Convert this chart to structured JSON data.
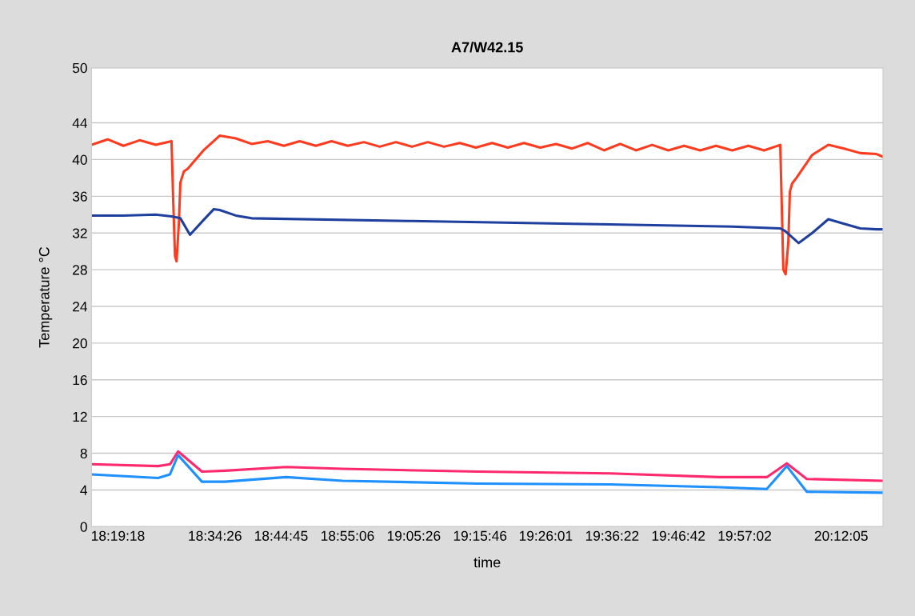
{
  "chart_data": {
    "type": "line",
    "title": "A7/W42.15",
    "xlabel": "time",
    "ylabel": "Temperature °C",
    "xlim": [
      18.253,
      20.31
    ],
    "xticks": [
      {
        "value": 18.3217,
        "label": "18:19:18"
      },
      {
        "value": 18.5739,
        "label": "18:34:26"
      },
      {
        "value": 18.7458,
        "label": "18:44:45"
      },
      {
        "value": 18.9183,
        "label": "18:55:06"
      },
      {
        "value": 19.0906,
        "label": "19:05:26"
      },
      {
        "value": 19.2628,
        "label": "19:15:46"
      },
      {
        "value": 19.4336,
        "label": "19:26:01"
      },
      {
        "value": 19.6061,
        "label": "19:36:22"
      },
      {
        "value": 19.7783,
        "label": "19:46:42"
      },
      {
        "value": 19.9506,
        "label": "19:57:02"
      },
      {
        "value": 20.2014,
        "label": "20:12:05"
      }
    ],
    "ylim": [
      0,
      50
    ],
    "yticks": [
      0,
      4,
      8,
      12,
      16,
      20,
      24,
      28,
      32,
      36,
      40,
      44,
      50
    ],
    "grid": "y",
    "marker": "none",
    "line_style": "solid",
    "series": [
      {
        "color": "#ff3b1f",
        "x": [
          18.253,
          18.295,
          18.336,
          18.378,
          18.42,
          18.461,
          18.465,
          18.47,
          18.474,
          18.48,
          18.484,
          18.493,
          18.503,
          18.544,
          18.586,
          18.628,
          18.669,
          18.711,
          18.753,
          18.794,
          18.836,
          18.877,
          18.919,
          18.961,
          19.002,
          19.044,
          19.086,
          19.127,
          19.169,
          19.21,
          19.252,
          19.294,
          19.335,
          19.377,
          19.419,
          19.46,
          19.502,
          19.543,
          19.585,
          19.627,
          19.668,
          19.71,
          19.752,
          19.793,
          19.835,
          19.876,
          19.918,
          19.96,
          20.001,
          20.043,
          20.047,
          20.051,
          20.057,
          20.064,
          20.068,
          20.074,
          20.085,
          20.126,
          20.168,
          20.209,
          20.251,
          20.293,
          20.31
        ],
        "values": [
          41.6,
          42.2,
          41.5,
          42.1,
          41.6,
          42.0,
          36,
          29.5,
          28.9,
          33,
          37.5,
          38.7,
          39.0,
          41.0,
          42.6,
          42.3,
          41.7,
          42.0,
          41.5,
          42.0,
          41.5,
          42.0,
          41.5,
          41.9,
          41.4,
          41.9,
          41.4,
          41.9,
          41.4,
          41.8,
          41.3,
          41.8,
          41.3,
          41.8,
          41.3,
          41.7,
          41.2,
          41.8,
          41.0,
          41.7,
          41.0,
          41.6,
          41.0,
          41.5,
          41.0,
          41.5,
          41.0,
          41.5,
          41.0,
          41.6,
          35,
          28,
          27.5,
          31,
          36.5,
          37.4,
          38.0,
          40.5,
          41.6,
          41.2,
          40.7,
          40.6,
          40.3
        ]
      },
      {
        "color": "#1f3f9f",
        "x": [
          18.253,
          18.336,
          18.42,
          18.461,
          18.484,
          18.509,
          18.544,
          18.571,
          18.586,
          18.628,
          18.669,
          19.086,
          19.502,
          19.918,
          20.043,
          20.056,
          20.091,
          20.126,
          20.168,
          20.209,
          20.251,
          20.293,
          20.31
        ],
        "values": [
          33.9,
          33.9,
          34.0,
          33.8,
          33.6,
          31.8,
          33.4,
          34.6,
          34.5,
          33.9,
          33.6,
          33.3,
          33.0,
          32.7,
          32.5,
          32.2,
          30.9,
          32.0,
          33.5,
          33.0,
          32.5,
          32.4,
          32.4
        ]
      },
      {
        "color": "#ff2a6e",
        "x": [
          18.253,
          18.426,
          18.457,
          18.478,
          18.54,
          18.6,
          18.759,
          18.905,
          19.258,
          19.6,
          19.883,
          20.008,
          20.06,
          20.112,
          20.31
        ],
        "values": [
          6.8,
          6.6,
          6.8,
          8.2,
          6.0,
          6.1,
          6.5,
          6.3,
          6.0,
          5.8,
          5.4,
          5.4,
          6.9,
          5.2,
          5.0
        ]
      },
      {
        "color": "#1e90ff",
        "x": [
          18.253,
          18.426,
          18.457,
          18.478,
          18.54,
          18.6,
          18.759,
          18.905,
          19.258,
          19.6,
          19.883,
          20.008,
          20.06,
          20.112,
          20.31
        ],
        "values": [
          5.7,
          5.3,
          5.7,
          7.8,
          4.9,
          4.9,
          5.4,
          5.0,
          4.7,
          4.6,
          4.3,
          4.1,
          6.6,
          3.8,
          3.7
        ]
      }
    ]
  }
}
